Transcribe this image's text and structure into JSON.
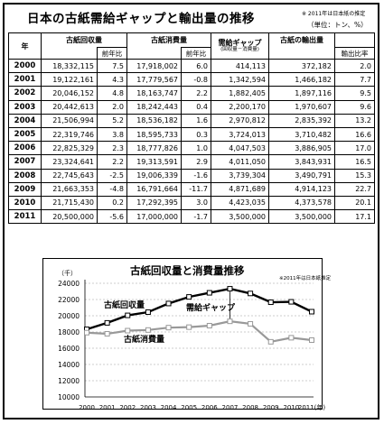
{
  "title": "日本の古紙需給ギャップと輸出量の推移",
  "note_source": "※ 2011年は日本紙の推定",
  "note_unit": "（単位：トン、%）",
  "table": {
    "headers": {
      "year": "年",
      "collection": "古紙回収量",
      "collection_yoy": "前年比",
      "consumption": "古紙消費量",
      "consumption_yoy": "前年比",
      "gap": "需給ギャップ",
      "gap_sub": "(回収量－消費量)",
      "export": "古紙の輸出量",
      "export_ratio": "輸出比率"
    },
    "rows": [
      {
        "year": "2000",
        "collection": "18,332,115",
        "collection_yoy": "7.5",
        "consumption": "17,918,002",
        "consumption_yoy": "6.0",
        "gap": "414,113",
        "export": "372,182",
        "export_ratio": "2.0"
      },
      {
        "year": "2001",
        "collection": "19,122,161",
        "collection_yoy": "4.3",
        "consumption": "17,779,567",
        "consumption_yoy": "-0.8",
        "gap": "1,342,594",
        "export": "1,466,182",
        "export_ratio": "7.7"
      },
      {
        "year": "2002",
        "collection": "20,046,152",
        "collection_yoy": "4.8",
        "consumption": "18,163,747",
        "consumption_yoy": "2.2",
        "gap": "1,882,405",
        "export": "1,897,116",
        "export_ratio": "9.5"
      },
      {
        "year": "2003",
        "collection": "20,442,613",
        "collection_yoy": "2.0",
        "consumption": "18,242,443",
        "consumption_yoy": "0.4",
        "gap": "2,200,170",
        "export": "1,970,607",
        "export_ratio": "9.6"
      },
      {
        "year": "2004",
        "collection": "21,506,994",
        "collection_yoy": "5.2",
        "consumption": "18,536,182",
        "consumption_yoy": "1.6",
        "gap": "2,970,812",
        "export": "2,835,392",
        "export_ratio": "13.2"
      },
      {
        "year": "2005",
        "collection": "22,319,746",
        "collection_yoy": "3.8",
        "consumption": "18,595,733",
        "consumption_yoy": "0.3",
        "gap": "3,724,013",
        "export": "3,710,482",
        "export_ratio": "16.6"
      },
      {
        "year": "2006",
        "collection": "22,825,329",
        "collection_yoy": "2.3",
        "consumption": "18,777,826",
        "consumption_yoy": "1.0",
        "gap": "4,047,503",
        "export": "3,886,905",
        "export_ratio": "17.0"
      },
      {
        "year": "2007",
        "collection": "23,324,641",
        "collection_yoy": "2.2",
        "consumption": "19,313,591",
        "consumption_yoy": "2.9",
        "gap": "4,011,050",
        "export": "3,843,931",
        "export_ratio": "16.5"
      },
      {
        "year": "2008",
        "collection": "22,745,643",
        "collection_yoy": "-2.5",
        "consumption": "19,006,339",
        "consumption_yoy": "-1.6",
        "gap": "3,739,304",
        "export": "3,490,791",
        "export_ratio": "15.3"
      },
      {
        "year": "2009",
        "collection": "21,663,353",
        "collection_yoy": "-4.8",
        "consumption": "16,791,664",
        "consumption_yoy": "-11.7",
        "gap": "4,871,689",
        "export": "4,914,123",
        "export_ratio": "22.7"
      },
      {
        "year": "2010",
        "collection": "21,715,430",
        "collection_yoy": "0.2",
        "consumption": "17,292,395",
        "consumption_yoy": "3.0",
        "gap": "4,423,035",
        "export": "4,373,578",
        "export_ratio": "20.1"
      },
      {
        "year": "2011",
        "collection": "20,500,000",
        "collection_yoy": "-5.6",
        "consumption": "17,000,000",
        "consumption_yoy": "-1.7",
        "gap": "3,500,000",
        "export": "3,500,000",
        "export_ratio": "17.1"
      }
    ]
  },
  "chart_title": "古紙回収量と消費量推移",
  "chart_note": "※2011年は日本紙推定",
  "chart_data": {
    "type": "line",
    "title": "古紙回収量と消費量推移",
    "ylabel": "（千）",
    "xlabel": "",
    "x": [
      "2000",
      "2001",
      "2002",
      "2003",
      "2004",
      "2005",
      "2006",
      "2007",
      "2008",
      "2009",
      "2010",
      "2011"
    ],
    "x_tick_labels": [
      "2000",
      "2001",
      "2002",
      "2003",
      "2004",
      "2005",
      "2006",
      "2007",
      "2008",
      "2009",
      "2010",
      "2011(年)"
    ],
    "y_ticks": [
      "10000",
      "12000",
      "14000",
      "16000",
      "18000",
      "20000",
      "22000",
      "24000"
    ],
    "ylim": [
      10000,
      24000
    ],
    "grid": true,
    "series": [
      {
        "name": "古紙回収量",
        "color": "#000000",
        "values": [
          18332,
          19122,
          20046,
          20443,
          21507,
          22320,
          22825,
          23325,
          22746,
          21663,
          21715,
          20500
        ]
      },
      {
        "name": "古紙消費量",
        "color": "#999999",
        "values": [
          17918,
          17780,
          18164,
          18242,
          18536,
          18596,
          18778,
          19314,
          19006,
          16792,
          17292,
          17000
        ]
      }
    ],
    "annotations": [
      {
        "text": "需給ギャップ"
      }
    ]
  }
}
